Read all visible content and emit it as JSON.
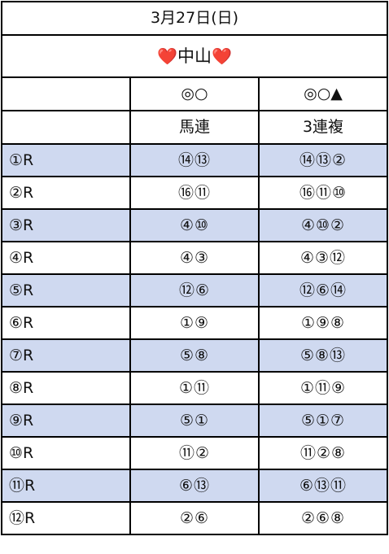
{
  "header": {
    "date": "3月27日(日)",
    "venue": "中山",
    "heart_left": "❤️",
    "heart_right": "❤️"
  },
  "columns": {
    "marks_a": "◎○",
    "marks_b": "◎○▲",
    "bet_a": "馬連",
    "bet_b": "3連複"
  },
  "races": [
    {
      "race": "①R",
      "umaren": "⑭⑬",
      "sanrenpuku": "⑭⑬②"
    },
    {
      "race": "②R",
      "umaren": "⑯⑪",
      "sanrenpuku": "⑯⑪⑩"
    },
    {
      "race": "③R",
      "umaren": "④⑩",
      "sanrenpuku": "④⑩②"
    },
    {
      "race": "④R",
      "umaren": "④③",
      "sanrenpuku": "④③⑫"
    },
    {
      "race": "⑤R",
      "umaren": "⑫⑥",
      "sanrenpuku": "⑫⑥⑭"
    },
    {
      "race": "⑥R",
      "umaren": "①⑨",
      "sanrenpuku": "①⑨⑧"
    },
    {
      "race": "⑦R",
      "umaren": "⑤⑧",
      "sanrenpuku": "⑤⑧⑬"
    },
    {
      "race": "⑧R",
      "umaren": "①⑪",
      "sanrenpuku": "①⑪⑨"
    },
    {
      "race": "⑨R",
      "umaren": "⑤①",
      "sanrenpuku": "⑤①⑦"
    },
    {
      "race": "⑩R",
      "umaren": "⑪②",
      "sanrenpuku": "⑪②⑧"
    },
    {
      "race": "⑪R",
      "umaren": "⑥⑬",
      "sanrenpuku": "⑥⑬⑪"
    },
    {
      "race": "⑫R",
      "umaren": "②⑥",
      "sanrenpuku": "②⑥⑧"
    }
  ],
  "colors": {
    "shaded_row": "#cfd9f0",
    "heart": "#e5202e",
    "border": "#000000"
  }
}
